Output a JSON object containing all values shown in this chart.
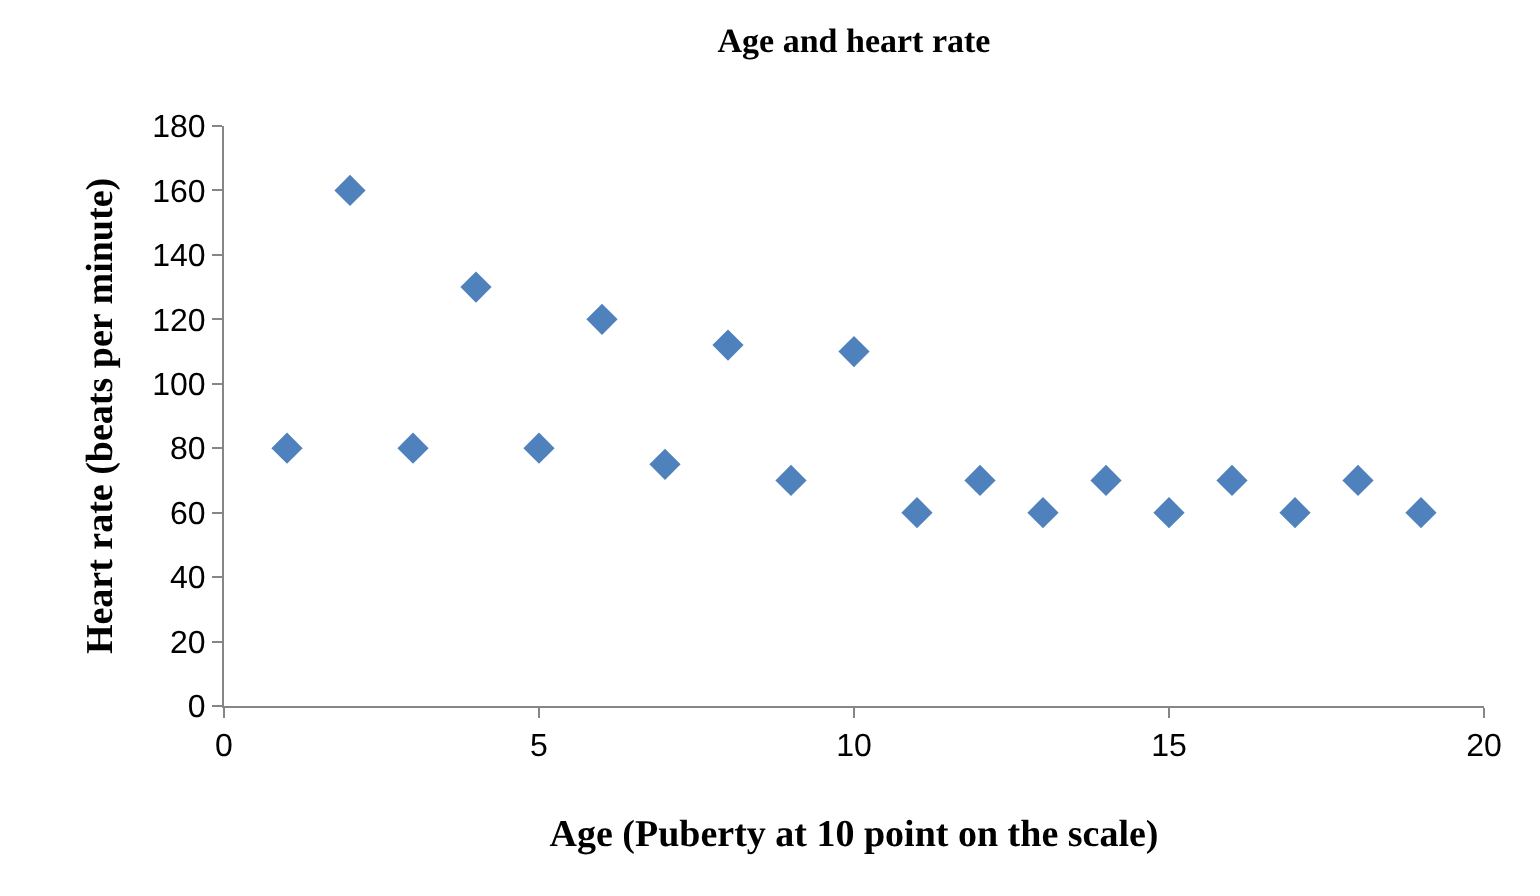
{
  "chart_data": {
    "type": "scatter",
    "title": "Age and heart rate",
    "xlabel": "Age (Puberty at 10 point on the scale)",
    "ylabel": "Heart rate (beats per minute)",
    "x": [
      1,
      2,
      3,
      4,
      5,
      6,
      7,
      8,
      9,
      10,
      11,
      12,
      13,
      14,
      15,
      16,
      17,
      18,
      19
    ],
    "series": [
      {
        "color": "#4f81bd",
        "values": [
          80,
          160,
          80,
          130,
          80,
          120,
          75,
          112,
          70,
          110,
          60,
          70,
          60,
          70,
          60,
          70,
          60,
          70,
          60
        ]
      }
    ],
    "xlim": [
      0,
      20
    ],
    "xticks": [
      0,
      5,
      10,
      15,
      20
    ],
    "ylim": [
      0,
      180
    ],
    "yticks": [
      0,
      20,
      40,
      60,
      80,
      100,
      120,
      140,
      160,
      180
    ],
    "grid": false,
    "marker": "diamond"
  }
}
